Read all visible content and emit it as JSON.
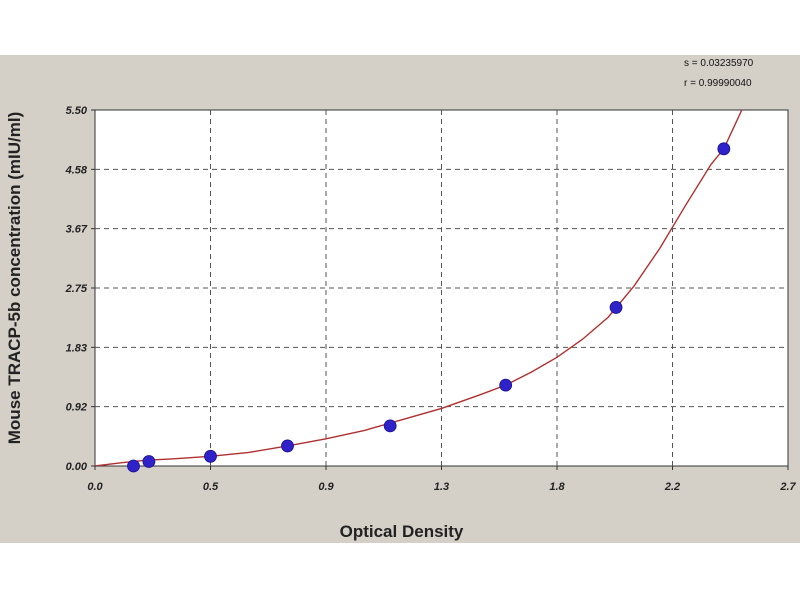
{
  "chart_data": {
    "type": "scatter",
    "title": "",
    "xlabel": "Optical Density",
    "ylabel": "Mouse TRACP-5b  concentration (mIU/ml)",
    "xlim": [
      0.0,
      2.7
    ],
    "ylim": [
      0.0,
      5.5
    ],
    "x_ticks": [
      {
        "value": 0.0,
        "label": "0.0"
      },
      {
        "value": 0.45,
        "label": "0.5"
      },
      {
        "value": 0.9,
        "label": "0.9"
      },
      {
        "value": 1.35,
        "label": "1.3"
      },
      {
        "value": 1.8,
        "label": "1.8"
      },
      {
        "value": 2.25,
        "label": "2.2"
      },
      {
        "value": 2.7,
        "label": "2.7"
      }
    ],
    "y_ticks": [
      {
        "value": 0.0,
        "label": "0.00"
      },
      {
        "value": 0.917,
        "label": "0.92"
      },
      {
        "value": 1.833,
        "label": "1.83"
      },
      {
        "value": 2.75,
        "label": "2.75"
      },
      {
        "value": 3.667,
        "label": "3.67"
      },
      {
        "value": 4.583,
        "label": "4.58"
      },
      {
        "value": 5.5,
        "label": "5.50"
      }
    ],
    "grid": true,
    "series": [
      {
        "name": "",
        "marker_color": "#2f22c8",
        "points": [
          {
            "x": 0.15,
            "y": 0.0
          },
          {
            "x": 0.21,
            "y": 0.07
          },
          {
            "x": 0.45,
            "y": 0.15
          },
          {
            "x": 0.75,
            "y": 0.31
          },
          {
            "x": 1.15,
            "y": 0.62
          },
          {
            "x": 1.6,
            "y": 1.25
          },
          {
            "x": 2.03,
            "y": 2.45
          },
          {
            "x": 2.45,
            "y": 4.9
          }
        ]
      }
    ],
    "fit_curve": {
      "color": "#b03030",
      "points": [
        [
          0.0,
          0.0
        ],
        [
          0.1,
          0.05
        ],
        [
          0.2,
          0.09
        ],
        [
          0.3,
          0.11
        ],
        [
          0.45,
          0.15
        ],
        [
          0.6,
          0.21
        ],
        [
          0.75,
          0.31
        ],
        [
          0.9,
          0.42
        ],
        [
          1.05,
          0.55
        ],
        [
          1.2,
          0.72
        ],
        [
          1.35,
          0.89
        ],
        [
          1.5,
          1.1
        ],
        [
          1.6,
          1.25
        ],
        [
          1.7,
          1.45
        ],
        [
          1.8,
          1.68
        ],
        [
          1.9,
          1.96
        ],
        [
          2.0,
          2.3
        ],
        [
          2.1,
          2.78
        ],
        [
          2.2,
          3.36
        ],
        [
          2.3,
          4.02
        ],
        [
          2.4,
          4.66
        ],
        [
          2.45,
          4.9
        ],
        [
          2.52,
          5.5
        ]
      ]
    },
    "fit_stats": {
      "s": "s = 0.03235970",
      "r": "r = 0.99990040"
    }
  }
}
